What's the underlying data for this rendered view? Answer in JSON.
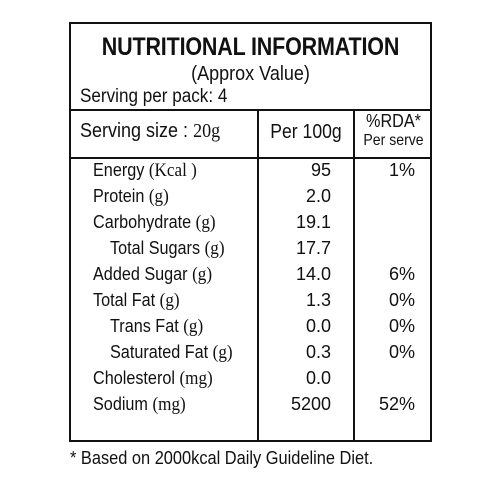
{
  "label": {
    "title": "NUTRITIONAL INFORMATION",
    "subtitle": "(Approx Value)",
    "serving_per_pack": "Serving per pack: 4",
    "serving_size_label": "Serving size :",
    "serving_size_value": "20g",
    "col_per100": "Per 100g",
    "col_rda_line1": "%RDA*",
    "col_rda_line2": "Per serve"
  },
  "rows": [
    {
      "name": "Energy",
      "unit": "(Kcal )",
      "value": "95",
      "rda": "1%"
    },
    {
      "name": "Protein",
      "unit": "(g)",
      "value": "2.0",
      "rda": ""
    },
    {
      "name": "Carbohydrate",
      "unit": "(g)",
      "value": "19.1",
      "rda": ""
    },
    {
      "name": "Total Sugars",
      "unit": "(g)",
      "value": "17.7",
      "rda": ""
    },
    {
      "name": "Added Sugar",
      "unit": "(g)",
      "value": "14.0",
      "rda": "6%"
    },
    {
      "name": "Total Fat",
      "unit": "(g)",
      "value": "1.3",
      "rda": "0%"
    },
    {
      "name": "Trans Fat",
      "unit": "(g)",
      "value": "0.0",
      "rda": "0%"
    },
    {
      "name": "Saturated Fat",
      "unit": "(g)",
      "value": "0.3",
      "rda": "0%"
    },
    {
      "name": "Cholesterol",
      "unit": "(mg)",
      "value": "0.0",
      "rda": ""
    },
    {
      "name": "Sodium",
      "unit": "(mg)",
      "value": "5200",
      "rda": "52%"
    }
  ],
  "footnote": "* Based on 2000kcal Daily Guideline Diet."
}
